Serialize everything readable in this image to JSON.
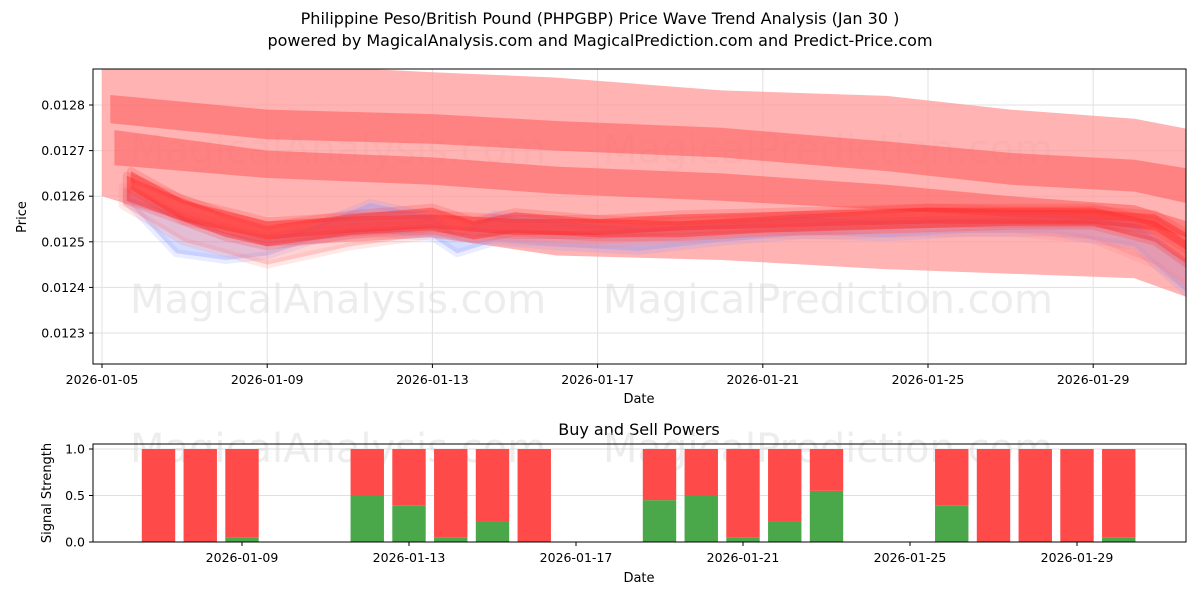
{
  "header": {
    "title": "Philippine Peso/British Pound (PHPGBP) Price Wave Trend Analysis (Jan 30 )",
    "subtitle": "powered by MagicalAnalysis.com and MagicalPrediction.com and Predict-Price.com"
  },
  "watermarks": [
    "MagicalAnalysis.com",
    "MagicalPrediction.com"
  ],
  "colors": {
    "band_light": "#ff9a9a",
    "band_dark": "#ff5a5a",
    "wave_red": "#ff2a2a",
    "wave_blue": "#8a9cff",
    "buy": "#4aa84a",
    "sell": "#ff4a4a",
    "grid": "#e0e0e0"
  },
  "chart_data": [
    {
      "type": "area",
      "title": "Philippine Peso/British Pound (PHPGBP) Price Wave Trend Analysis (Jan 30 )",
      "xlabel": "Date",
      "ylabel": "Price",
      "x_ticks": [
        "2026-01-05",
        "2026-01-09",
        "2026-01-13",
        "2026-01-17",
        "2026-01-21",
        "2026-01-25",
        "2026-01-29"
      ],
      "y_ticks": [
        "0.0123",
        "0.0124",
        "0.0125",
        "0.0126",
        "0.0127",
        "0.0128"
      ],
      "ylim": [
        0.012236,
        0.01288
      ],
      "xlim_days_from_jan05": [
        -0.22,
        26.26
      ],
      "grid": true,
      "bands": [
        {
          "name": "outer-upper-band",
          "style": "light",
          "x": [
            0,
            4,
            8,
            11,
            15,
            19,
            22,
            25,
            27,
            29,
            30.8
          ],
          "upper": [
            0.012912,
            0.01289,
            0.012872,
            0.01286,
            0.012832,
            0.01282,
            0.01279,
            0.01277,
            0.012735,
            0.0127,
            0.012665
          ],
          "lower": [
            0.0126,
            0.012555,
            0.012552,
            0.012545,
            0.012538,
            0.01253,
            0.01252,
            0.01251,
            0.012475,
            0.012435,
            0.012385
          ]
        },
        {
          "name": "upper-channel",
          "style": "dark",
          "x": [
            0.2,
            4,
            8,
            11,
            15,
            19,
            22,
            25,
            27,
            29,
            30.6
          ],
          "upper": [
            0.012822,
            0.01279,
            0.01278,
            0.012765,
            0.01275,
            0.01272,
            0.012695,
            0.01268,
            0.01265,
            0.01261,
            0.01256
          ],
          "lower": [
            0.01276,
            0.012725,
            0.012715,
            0.0127,
            0.012685,
            0.012655,
            0.012625,
            0.01261,
            0.01257,
            0.012525,
            0.012485
          ]
        },
        {
          "name": "middle-channel",
          "style": "dark",
          "x": [
            0.3,
            4,
            8,
            11,
            15,
            19,
            22,
            25,
            27,
            29,
            30.5
          ],
          "upper": [
            0.012745,
            0.0127,
            0.012685,
            0.012665,
            0.01265,
            0.012625,
            0.0126,
            0.01258,
            0.012525,
            0.01247,
            0.01242
          ],
          "lower": [
            0.012668,
            0.01264,
            0.012625,
            0.012605,
            0.01259,
            0.01257,
            0.012555,
            0.012545,
            0.01249,
            0.01244,
            0.01236
          ]
        },
        {
          "name": "outer-lower-band",
          "style": "light",
          "x": [
            0,
            4,
            8,
            11,
            15,
            19,
            22,
            25,
            27,
            29,
            30.8
          ],
          "upper": [
            0.0126,
            0.012555,
            0.012552,
            0.012545,
            0.012538,
            0.01253,
            0.01252,
            0.01251,
            0.012475,
            0.012435,
            0.012385
          ],
          "lower": [
            0.0126,
            0.01249,
            0.01251,
            0.01247,
            0.01246,
            0.01244,
            0.01243,
            0.01242,
            0.012355,
            0.01231,
            0.01229
          ]
        }
      ],
      "waves": [
        {
          "name": "wave-blue-low",
          "color": "blue",
          "x": [
            0.6,
            1.8,
            3,
            4,
            5,
            6.5,
            8,
            8.6,
            9.5,
            11,
            13,
            15,
            17,
            19,
            21,
            23,
            25,
            26,
            27,
            28,
            29,
            30
          ],
          "upper": [
            0.01261,
            0.01256,
            0.01252,
            0.012505,
            0.01253,
            0.012585,
            0.012555,
            0.012515,
            0.01256,
            0.012545,
            0.01253,
            0.01254,
            0.012555,
            0.012545,
            0.01255,
            0.012555,
            0.01254,
            0.01247,
            0.0124,
            0.01233,
            0.01229,
            0.01228
          ],
          "lower": [
            0.01259,
            0.012475,
            0.01246,
            0.01247,
            0.0125,
            0.01252,
            0.01251,
            0.012475,
            0.0125,
            0.01249,
            0.01248,
            0.0125,
            0.012515,
            0.01251,
            0.01252,
            0.01252,
            0.01249,
            0.01241,
            0.01233,
            0.01226,
            0.012255,
            0.012255
          ]
        },
        {
          "name": "wave-pink-low",
          "color": "pinklight",
          "x": [
            0.5,
            2,
            4,
            6,
            8,
            10,
            12,
            14,
            16,
            18,
            20,
            22,
            24,
            25.5,
            27,
            28.5,
            30
          ],
          "upper": [
            0.01262,
            0.01256,
            0.01252,
            0.01254,
            0.01255,
            0.01254,
            0.012535,
            0.012545,
            0.01255,
            0.01255,
            0.012555,
            0.012555,
            0.012545,
            0.0125,
            0.01242,
            0.01234,
            0.01228
          ],
          "lower": [
            0.01258,
            0.0125,
            0.01245,
            0.01249,
            0.012515,
            0.0125,
            0.012495,
            0.012505,
            0.012515,
            0.012515,
            0.01252,
            0.01252,
            0.012505,
            0.01245,
            0.01236,
            0.01228,
            0.012245
          ]
        },
        {
          "name": "wave-red-1",
          "color": "red",
          "x": [
            0.6,
            1.5,
            3,
            4,
            6,
            8,
            9,
            10,
            12,
            14,
            16,
            18,
            20,
            22,
            24,
            25.5,
            27,
            28.5,
            30
          ],
          "upper": [
            0.012645,
            0.01261,
            0.01256,
            0.012535,
            0.01256,
            0.012575,
            0.012545,
            0.012565,
            0.01255,
            0.012545,
            0.012555,
            0.012565,
            0.012575,
            0.012575,
            0.012575,
            0.012545,
            0.01246,
            0.01237,
            0.0123
          ],
          "lower": [
            0.01259,
            0.01256,
            0.01251,
            0.01249,
            0.012515,
            0.012525,
            0.012505,
            0.01252,
            0.01251,
            0.01251,
            0.01252,
            0.012525,
            0.01253,
            0.012535,
            0.012535,
            0.0125,
            0.012405,
            0.012315,
            0.012255
          ]
        },
        {
          "name": "wave-red-2",
          "color": "red",
          "x": [
            0.7,
            2,
            4,
            6,
            8,
            10,
            12,
            14,
            16,
            18,
            20,
            22,
            24,
            25.5,
            27,
            28.5,
            29.8
          ],
          "upper": [
            0.012655,
            0.01259,
            0.012545,
            0.012555,
            0.01256,
            0.01255,
            0.01255,
            0.01256,
            0.012565,
            0.01257,
            0.012575,
            0.01257,
            0.01257,
            0.01256,
            0.01248,
            0.0124,
            0.01234
          ],
          "lower": [
            0.012615,
            0.012545,
            0.012505,
            0.01252,
            0.01253,
            0.012515,
            0.012515,
            0.012525,
            0.01253,
            0.012535,
            0.01254,
            0.01254,
            0.01254,
            0.012525,
            0.01244,
            0.012355,
            0.012295
          ]
        }
      ]
    },
    {
      "type": "bar",
      "title": "Buy and Sell Powers",
      "xlabel": "Date",
      "ylabel": "Signal Strength",
      "x_ticks": [
        "2026-01-09",
        "2026-01-13",
        "2026-01-17",
        "2026-01-21",
        "2026-01-25",
        "2026-01-29"
      ],
      "y_ticks": [
        "0.0",
        "0.5",
        "1.0"
      ],
      "ylim": [
        0,
        1.05
      ],
      "stacked": true,
      "categories": [
        "2026-01-07",
        "2026-01-08",
        "2026-01-09",
        "2026-01-12",
        "2026-01-13",
        "2026-01-14",
        "2026-01-15",
        "2026-01-16",
        "2026-01-19",
        "2026-01-20",
        "2026-01-21",
        "2026-01-22",
        "2026-01-23",
        "2026-01-26",
        "2026-01-27",
        "2026-01-28",
        "2026-01-29",
        "2026-01-30"
      ],
      "day_index": [
        2,
        3,
        4,
        7,
        8,
        9,
        10,
        11,
        14,
        15,
        16,
        17,
        18,
        21,
        22,
        23,
        24,
        25
      ],
      "series": [
        {
          "name": "Buy",
          "color": "green",
          "values": [
            0.0,
            0.0,
            0.05,
            0.5,
            0.39,
            0.05,
            0.22,
            0.0,
            0.45,
            0.5,
            0.05,
            0.22,
            0.55,
            0.39,
            0.0,
            0.0,
            0.0,
            0.05
          ]
        },
        {
          "name": "Sell",
          "color": "red",
          "values": [
            1.0,
            1.0,
            0.95,
            0.5,
            0.61,
            0.95,
            0.78,
            1.0,
            0.55,
            0.5,
            0.95,
            0.78,
            0.45,
            0.61,
            1.0,
            1.0,
            1.0,
            0.95
          ]
        }
      ]
    }
  ]
}
